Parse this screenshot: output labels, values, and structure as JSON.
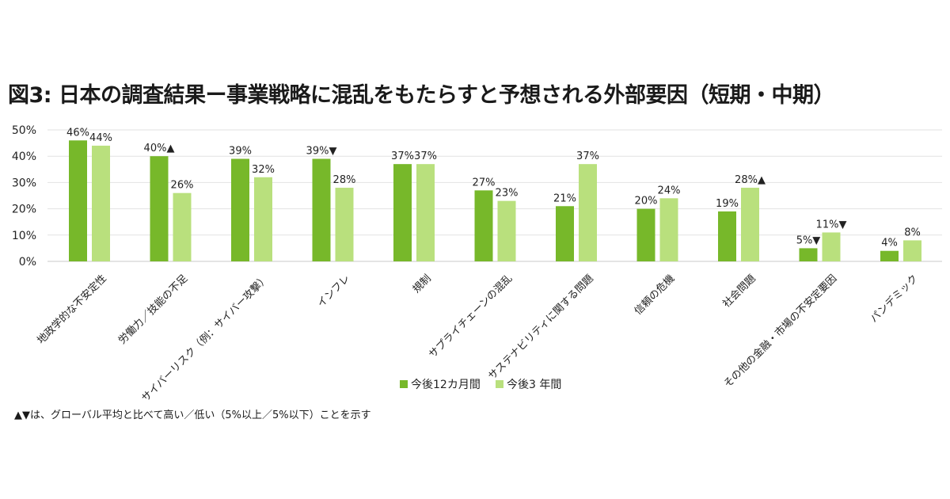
{
  "chart_data": {
    "type": "bar",
    "title": "図3: 日本の調査結果ー事業戦略に混乱をもたらすと予想される外部要因（短期・中期）",
    "categories": [
      "地政学的な不安定性",
      "労働力／技能の不足",
      "サイバーリスク（例：サイバー攻撃）",
      "インフレ",
      "規制",
      "サプライチェーンの混乱",
      "サステナビリティに関する問題",
      "信頼の危機",
      "社会問題",
      "その他の金融・市場の不安定要因",
      "パンデミック"
    ],
    "series": [
      {
        "name": "今後12カ月間",
        "color": "#77b82a",
        "values": [
          46,
          40,
          39,
          39,
          37,
          27,
          21,
          20,
          19,
          5,
          4
        ],
        "value_labels": [
          "46%",
          "40%▲",
          "39%",
          "39%▼",
          "37%",
          "27%",
          "21%",
          "20%",
          "19%",
          "5%▼",
          "4%"
        ]
      },
      {
        "name": "今後3 年間",
        "color": "#b9e07d",
        "values": [
          44,
          26,
          32,
          28,
          37,
          23,
          37,
          24,
          28,
          11,
          8
        ],
        "value_labels": [
          "44%",
          "26%",
          "32%",
          "28%",
          "37%",
          "23%",
          "37%",
          "24%",
          "28%▲",
          "11%▼",
          "8%"
        ]
      }
    ],
    "ylim": [
      0,
      50
    ],
    "yticks": [
      0,
      10,
      20,
      30,
      40,
      50
    ],
    "ytick_labels": [
      "0%",
      "10%",
      "20%",
      "30%",
      "40%",
      "50%"
    ],
    "xlabel": "",
    "ylabel": "",
    "grid": true,
    "legend_position": "bottom-center"
  },
  "note": "▲▼は、グローバル平均と比べて高い／低い（5%以上／5%以下）ことを示す"
}
